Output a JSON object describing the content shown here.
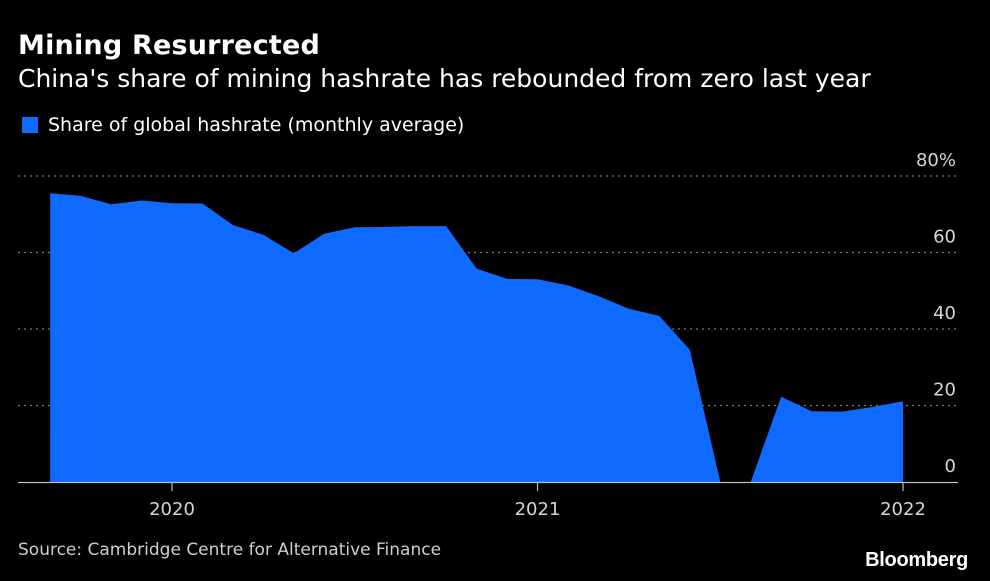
{
  "chart_data": {
    "type": "area",
    "title": "Mining Resurrected",
    "subtitle": "China's share of mining hashrate has rebounded from zero last year",
    "legend": [
      {
        "name": "Share of global hashrate (monthly average)",
        "color": "#0f6bff"
      }
    ],
    "y_ticks": [
      {
        "value": 80,
        "label": "80%"
      },
      {
        "value": 60,
        "label": "60"
      },
      {
        "value": 40,
        "label": "40"
      },
      {
        "value": 20,
        "label": "20"
      },
      {
        "value": 0,
        "label": "0"
      }
    ],
    "x_ticks": [
      {
        "value": "2020-01",
        "label": "2020"
      },
      {
        "value": "2021-01",
        "label": "2021"
      },
      {
        "value": "2022-01",
        "label": "2022"
      }
    ],
    "ylim": [
      0,
      80
    ],
    "xlim": [
      "2019-08",
      "2022-02"
    ],
    "grid": "dotted-horizontal",
    "legend_position": "top-left",
    "series": [
      {
        "name": "Share of global hashrate (monthly average)",
        "color": "#0f6bff",
        "x": [
          "2019-09",
          "2019-10",
          "2019-11",
          "2019-12",
          "2020-01",
          "2020-02",
          "2020-03",
          "2020-04",
          "2020-05",
          "2020-06",
          "2020-07",
          "2020-08",
          "2020-09",
          "2020-10",
          "2020-11",
          "2020-12",
          "2021-01",
          "2021-02",
          "2021-03",
          "2021-04",
          "2021-05",
          "2021-06",
          "2021-07",
          "2021-08",
          "2021-09",
          "2021-10",
          "2021-11",
          "2021-12",
          "2022-01"
        ],
        "values": [
          75.5,
          74.8,
          72.6,
          73.6,
          72.9,
          72.8,
          67.2,
          64.6,
          59.8,
          64.9,
          66.6,
          66.7,
          66.9,
          66.9,
          55.8,
          53.1,
          53.0,
          51.4,
          48.6,
          45.3,
          43.4,
          34.6,
          0,
          0,
          22.3,
          18.5,
          18.4,
          19.6,
          21.1
        ]
      }
    ]
  },
  "source": "Source: Cambridge Centre for Alternative Finance",
  "brand": "Bloomberg"
}
